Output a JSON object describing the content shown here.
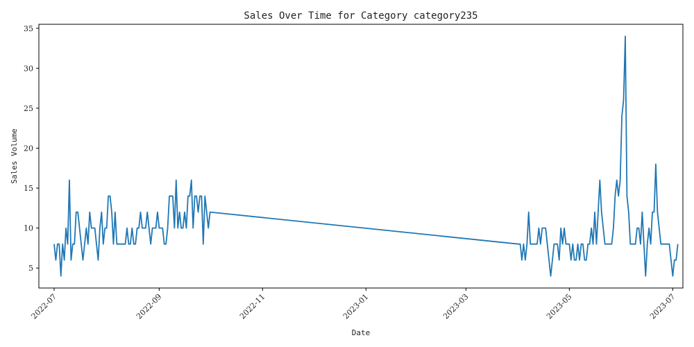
{
  "chart_data": {
    "type": "line",
    "title": "Sales Over Time for Category category235",
    "xlabel": "Date",
    "ylabel": "Sales Volume",
    "xlim": [
      "2022-06-22",
      "2023-07-07"
    ],
    "ylim": [
      2.5,
      35.5
    ],
    "x_ticks": [
      {
        "value": "2022-07-01",
        "label": "2022-07"
      },
      {
        "value": "2022-09-01",
        "label": "2022-09"
      },
      {
        "value": "2022-11-01",
        "label": "2022-11"
      },
      {
        "value": "2023-01-01",
        "label": "2023-01"
      },
      {
        "value": "2023-03-01",
        "label": "2023-03"
      },
      {
        "value": "2023-05-01",
        "label": "2023-05"
      },
      {
        "value": "2023-07-01",
        "label": "2023-07"
      }
    ],
    "y_ticks": [
      5,
      10,
      15,
      20,
      25,
      30,
      35
    ],
    "grid": false,
    "legend": "none",
    "series": [
      {
        "color": "#1f77b4",
        "points": [
          [
            "2022-07-01",
            8
          ],
          [
            "2022-07-02",
            6
          ],
          [
            "2022-07-03",
            8
          ],
          [
            "2022-07-04",
            8
          ],
          [
            "2022-07-05",
            4
          ],
          [
            "2022-07-06",
            8
          ],
          [
            "2022-07-07",
            6
          ],
          [
            "2022-07-08",
            10
          ],
          [
            "2022-07-09",
            8
          ],
          [
            "2022-07-10",
            16
          ],
          [
            "2022-07-11",
            6
          ],
          [
            "2022-07-12",
            8
          ],
          [
            "2022-07-13",
            8
          ],
          [
            "2022-07-14",
            12
          ],
          [
            "2022-07-15",
            12
          ],
          [
            "2022-07-16",
            10
          ],
          [
            "2022-07-17",
            8
          ],
          [
            "2022-07-18",
            6
          ],
          [
            "2022-07-19",
            8
          ],
          [
            "2022-07-20",
            10
          ],
          [
            "2022-07-21",
            8
          ],
          [
            "2022-07-22",
            12
          ],
          [
            "2022-07-23",
            10
          ],
          [
            "2022-07-24",
            10
          ],
          [
            "2022-07-25",
            10
          ],
          [
            "2022-07-26",
            8
          ],
          [
            "2022-07-27",
            6
          ],
          [
            "2022-07-28",
            10
          ],
          [
            "2022-07-29",
            12
          ],
          [
            "2022-07-30",
            8
          ],
          [
            "2022-07-31",
            10
          ],
          [
            "2022-08-01",
            10
          ],
          [
            "2022-08-02",
            14
          ],
          [
            "2022-08-03",
            14
          ],
          [
            "2022-08-04",
            12
          ],
          [
            "2022-08-05",
            8
          ],
          [
            "2022-08-06",
            12
          ],
          [
            "2022-08-07",
            8
          ],
          [
            "2022-08-08",
            8
          ],
          [
            "2022-08-09",
            8
          ],
          [
            "2022-08-10",
            8
          ],
          [
            "2022-08-11",
            8
          ],
          [
            "2022-08-12",
            8
          ],
          [
            "2022-08-13",
            10
          ],
          [
            "2022-08-14",
            8
          ],
          [
            "2022-08-15",
            8
          ],
          [
            "2022-08-16",
            10
          ],
          [
            "2022-08-17",
            8
          ],
          [
            "2022-08-18",
            8
          ],
          [
            "2022-08-19",
            10
          ],
          [
            "2022-08-20",
            10
          ],
          [
            "2022-08-21",
            12
          ],
          [
            "2022-08-22",
            10
          ],
          [
            "2022-08-23",
            10
          ],
          [
            "2022-08-24",
            10
          ],
          [
            "2022-08-25",
            12
          ],
          [
            "2022-08-26",
            10
          ],
          [
            "2022-08-27",
            8
          ],
          [
            "2022-08-28",
            10
          ],
          [
            "2022-08-29",
            10
          ],
          [
            "2022-08-30",
            10
          ],
          [
            "2022-08-31",
            12
          ],
          [
            "2022-09-01",
            10
          ],
          [
            "2022-09-02",
            10
          ],
          [
            "2022-09-03",
            10
          ],
          [
            "2022-09-04",
            8
          ],
          [
            "2022-09-05",
            8
          ],
          [
            "2022-09-06",
            10
          ],
          [
            "2022-09-07",
            14
          ],
          [
            "2022-09-08",
            14
          ],
          [
            "2022-09-09",
            14
          ],
          [
            "2022-09-10",
            10
          ],
          [
            "2022-09-11",
            16
          ],
          [
            "2022-09-12",
            10
          ],
          [
            "2022-09-13",
            12
          ],
          [
            "2022-09-14",
            10
          ],
          [
            "2022-09-15",
            10
          ],
          [
            "2022-09-16",
            12
          ],
          [
            "2022-09-17",
            10
          ],
          [
            "2022-09-18",
            14
          ],
          [
            "2022-09-19",
            14
          ],
          [
            "2022-09-20",
            16
          ],
          [
            "2022-09-21",
            10
          ],
          [
            "2022-09-22",
            14
          ],
          [
            "2022-09-23",
            14
          ],
          [
            "2022-09-24",
            12
          ],
          [
            "2022-09-25",
            14
          ],
          [
            "2022-09-26",
            14
          ],
          [
            "2022-09-27",
            8
          ],
          [
            "2022-09-28",
            14
          ],
          [
            "2022-09-29",
            12
          ],
          [
            "2022-09-30",
            10
          ],
          [
            "2022-10-01",
            12
          ],
          [
            "2023-04-01",
            8
          ],
          [
            "2023-04-02",
            8
          ],
          [
            "2023-04-03",
            6
          ],
          [
            "2023-04-04",
            8
          ],
          [
            "2023-04-05",
            6
          ],
          [
            "2023-04-06",
            8
          ],
          [
            "2023-04-07",
            12
          ],
          [
            "2023-04-08",
            8
          ],
          [
            "2023-04-09",
            8
          ],
          [
            "2023-04-10",
            8
          ],
          [
            "2023-04-11",
            8
          ],
          [
            "2023-04-12",
            8
          ],
          [
            "2023-04-13",
            10
          ],
          [
            "2023-04-14",
            8
          ],
          [
            "2023-04-15",
            10
          ],
          [
            "2023-04-16",
            10
          ],
          [
            "2023-04-17",
            10
          ],
          [
            "2023-04-18",
            8
          ],
          [
            "2023-04-19",
            6
          ],
          [
            "2023-04-20",
            4
          ],
          [
            "2023-04-21",
            6
          ],
          [
            "2023-04-22",
            8
          ],
          [
            "2023-04-23",
            8
          ],
          [
            "2023-04-24",
            8
          ],
          [
            "2023-04-25",
            6
          ],
          [
            "2023-04-26",
            10
          ],
          [
            "2023-04-27",
            8
          ],
          [
            "2023-04-28",
            10
          ],
          [
            "2023-04-29",
            8
          ],
          [
            "2023-04-30",
            8
          ],
          [
            "2023-05-01",
            8
          ],
          [
            "2023-05-02",
            6
          ],
          [
            "2023-05-03",
            8
          ],
          [
            "2023-05-04",
            6
          ],
          [
            "2023-05-05",
            6
          ],
          [
            "2023-05-06",
            8
          ],
          [
            "2023-05-07",
            6
          ],
          [
            "2023-05-08",
            8
          ],
          [
            "2023-05-09",
            8
          ],
          [
            "2023-05-10",
            6
          ],
          [
            "2023-05-11",
            6
          ],
          [
            "2023-05-12",
            8
          ],
          [
            "2023-05-13",
            8
          ],
          [
            "2023-05-14",
            10
          ],
          [
            "2023-05-15",
            8
          ],
          [
            "2023-05-16",
            12
          ],
          [
            "2023-05-17",
            8
          ],
          [
            "2023-05-18",
            12
          ],
          [
            "2023-05-19",
            16
          ],
          [
            "2023-05-20",
            12
          ],
          [
            "2023-05-21",
            10
          ],
          [
            "2023-05-22",
            8
          ],
          [
            "2023-05-23",
            8
          ],
          [
            "2023-05-24",
            8
          ],
          [
            "2023-05-25",
            8
          ],
          [
            "2023-05-26",
            8
          ],
          [
            "2023-05-27",
            10
          ],
          [
            "2023-05-28",
            14
          ],
          [
            "2023-05-29",
            16
          ],
          [
            "2023-05-30",
            14
          ],
          [
            "2023-05-31",
            16
          ],
          [
            "2023-06-01",
            24
          ],
          [
            "2023-06-02",
            26
          ],
          [
            "2023-06-03",
            34
          ],
          [
            "2023-06-04",
            14
          ],
          [
            "2023-06-05",
            12
          ],
          [
            "2023-06-06",
            8
          ],
          [
            "2023-06-07",
            8
          ],
          [
            "2023-06-08",
            8
          ],
          [
            "2023-06-09",
            8
          ],
          [
            "2023-06-10",
            10
          ],
          [
            "2023-06-11",
            10
          ],
          [
            "2023-06-12",
            8
          ],
          [
            "2023-06-13",
            12
          ],
          [
            "2023-06-14",
            8
          ],
          [
            "2023-06-15",
            4
          ],
          [
            "2023-06-16",
            8
          ],
          [
            "2023-06-17",
            10
          ],
          [
            "2023-06-18",
            8
          ],
          [
            "2023-06-19",
            12
          ],
          [
            "2023-06-20",
            12
          ],
          [
            "2023-06-21",
            18
          ],
          [
            "2023-06-22",
            12
          ],
          [
            "2023-06-23",
            10
          ],
          [
            "2023-06-24",
            8
          ],
          [
            "2023-06-25",
            8
          ],
          [
            "2023-06-26",
            8
          ],
          [
            "2023-06-27",
            8
          ],
          [
            "2023-06-28",
            8
          ],
          [
            "2023-06-29",
            8
          ],
          [
            "2023-06-30",
            6
          ],
          [
            "2023-07-01",
            4
          ],
          [
            "2023-07-02",
            6
          ],
          [
            "2023-07-03",
            6
          ],
          [
            "2023-07-04",
            8
          ]
        ]
      }
    ]
  }
}
